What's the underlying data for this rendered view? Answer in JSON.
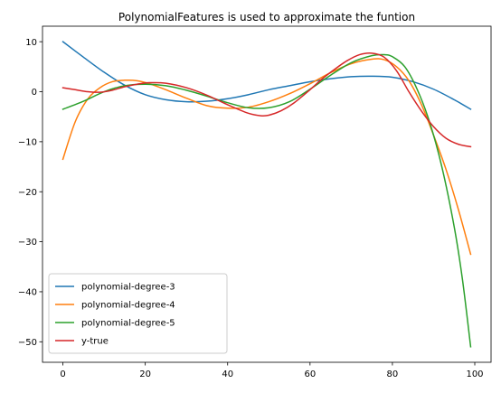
{
  "chart_data": {
    "type": "line",
    "title": "PolynomialFeatures is used to approximate the funtion",
    "xlabel": "",
    "ylabel": "",
    "xlim": [
      -4.95,
      103.95
    ],
    "ylim": [
      -54.1,
      13.1
    ],
    "xticks": [
      0,
      20,
      40,
      60,
      80,
      100
    ],
    "yticks": [
      10,
      0,
      -10,
      -20,
      -30,
      -40,
      -50
    ],
    "grid": false,
    "legend_position": "lower-left",
    "series": [
      {
        "name": "polynomial-degree-3",
        "color": "#1f77b4",
        "x": [
          0,
          5,
          10,
          15,
          20,
          25,
          30,
          35,
          40,
          45,
          50,
          55,
          60,
          65,
          70,
          75,
          80,
          85,
          90,
          95,
          99
        ],
        "y": [
          10.0,
          6.9,
          3.9,
          1.3,
          -0.6,
          -1.6,
          -2.0,
          -1.9,
          -1.4,
          -0.6,
          0.4,
          1.2,
          2.0,
          2.6,
          3.0,
          3.1,
          2.9,
          2.0,
          0.5,
          -1.6,
          -3.5
        ]
      },
      {
        "name": "polynomial-degree-4",
        "color": "#ff7f0e",
        "x": [
          0,
          3,
          6,
          9,
          12,
          15,
          18,
          21,
          25,
          30,
          35,
          40,
          45,
          50,
          55,
          60,
          65,
          70,
          75,
          78,
          81,
          84,
          87,
          90,
          93,
          96,
          99
        ],
        "y": [
          -13.5,
          -6.0,
          -1.5,
          0.8,
          2.0,
          2.3,
          2.2,
          1.6,
          0.4,
          -1.3,
          -2.8,
          -3.3,
          -3.1,
          -2.0,
          -0.4,
          1.6,
          3.8,
          5.6,
          6.5,
          6.4,
          5.0,
          2.2,
          -2.5,
          -8.7,
          -15.5,
          -23.5,
          -32.5
        ]
      },
      {
        "name": "polynomial-degree-5",
        "color": "#2ca02c",
        "x": [
          0,
          5,
          10,
          15,
          20,
          25,
          30,
          35,
          40,
          45,
          50,
          55,
          60,
          65,
          70,
          75,
          78,
          80,
          83,
          86,
          89,
          92,
          95,
          97,
          99
        ],
        "y": [
          -3.5,
          -1.9,
          0.0,
          1.2,
          1.5,
          1.2,
          0.3,
          -0.9,
          -2.2,
          -3.2,
          -3.2,
          -2.0,
          0.5,
          3.3,
          5.8,
          7.2,
          7.4,
          7.0,
          5.0,
          0.5,
          -6.0,
          -15.0,
          -27.0,
          -37.5,
          -51.0
        ]
      },
      {
        "name": "y-true",
        "color": "#d62728",
        "x": [
          0,
          3,
          6,
          9,
          12,
          15,
          18,
          21,
          25,
          30,
          35,
          40,
          45,
          48,
          50,
          53,
          56,
          60,
          63,
          66,
          69,
          72,
          75,
          78,
          81,
          84,
          87,
          90,
          93,
          96,
          99
        ],
        "y": [
          0.8,
          0.4,
          0.0,
          -0.1,
          0.3,
          1.0,
          1.5,
          1.8,
          1.7,
          0.8,
          -0.7,
          -2.6,
          -4.3,
          -4.8,
          -4.7,
          -3.8,
          -2.3,
          0.4,
          2.6,
          4.5,
          6.2,
          7.4,
          7.7,
          6.9,
          4.2,
          0.0,
          -3.8,
          -7.0,
          -9.3,
          -10.5,
          -11.0
        ]
      }
    ]
  }
}
